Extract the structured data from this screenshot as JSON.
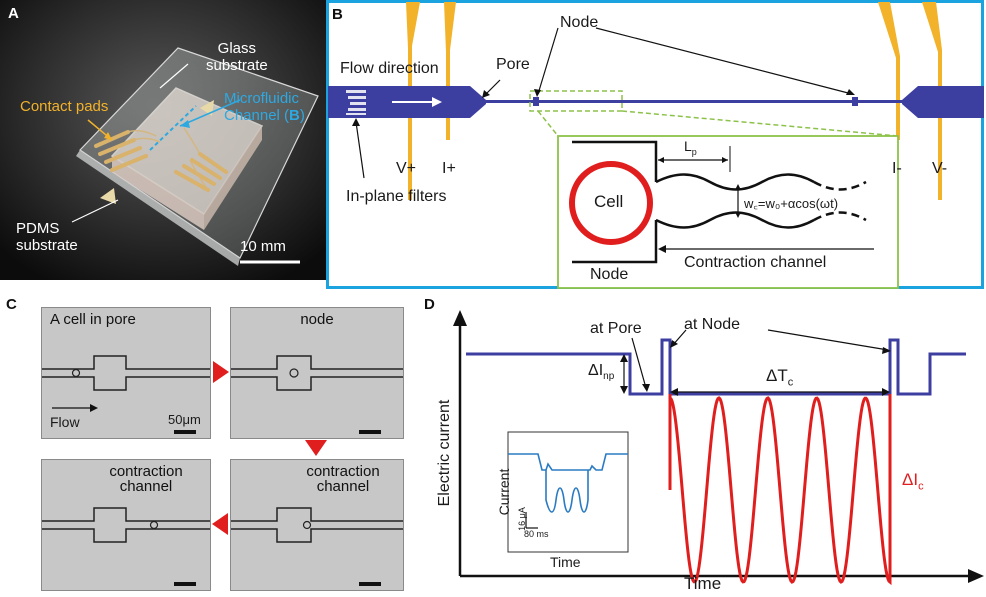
{
  "panels": {
    "a": "A",
    "b": "B",
    "c": "C",
    "d": "D"
  },
  "panel_a": {
    "glass_substrate": [
      "Glass",
      "substrate"
    ],
    "contact_pads": "Contact pads",
    "microfluidic": [
      "Microfluidic",
      "Channel ("
    ],
    "microfluidic_ref": "B",
    "microfluidic_close": ")",
    "pdms_substrate": [
      "PDMS",
      "substrate"
    ],
    "scale_bar": "10 mm"
  },
  "panel_b": {
    "flow_direction": "Flow direction",
    "pore": "Pore",
    "node": "Node",
    "v_plus": "V+",
    "i_plus": "I+",
    "i_minus": "I-",
    "v_minus": "V-",
    "in_plane_filters": "In-plane filters",
    "inset": {
      "cell": "Cell",
      "lp": "L",
      "lp_sub": "p",
      "wc_formula": "w꜀=w₀+αcos(ωt)",
      "node": "Node",
      "contraction_channel": "Contraction channel"
    }
  },
  "panel_c": {
    "frames": [
      "A cell in pore",
      "node",
      "contraction channel",
      "contraction channel"
    ],
    "flow": "Flow",
    "scale_bar": "50μm"
  },
  "panel_d": {
    "at_pore": "at Pore",
    "at_node": "at Node",
    "delta_inp": "ΔI",
    "delta_inp_sub": "np",
    "delta_tc": "ΔT",
    "delta_tc_sub": "c",
    "delta_ic": "ΔI",
    "delta_ic_sub": "c",
    "y_label": "Electric current",
    "x_label": "Time",
    "inset": {
      "y_label": "Current",
      "x_label": "Time",
      "scale_y": "16 μA",
      "scale_x": "80 ms"
    }
  },
  "colors": {
    "channel_blue": "#3d3fa0",
    "cell_red": "#e01e1e",
    "cyan_border": "#1aa3df",
    "green_border": "#8dc24a",
    "gold": "#f2b22a"
  }
}
